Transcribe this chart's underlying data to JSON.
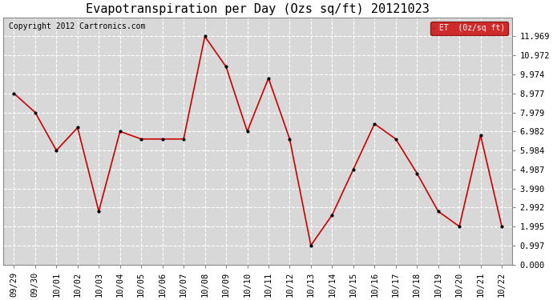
{
  "title": "Evapotranspiration per Day (Ozs sq/ft) 20121023",
  "copyright": "Copyright 2012 Cartronics.com",
  "legend_label": "ET  (0z/sq ft)",
  "x_labels": [
    "09/29",
    "09/30",
    "10/01",
    "10/02",
    "10/03",
    "10/04",
    "10/05",
    "10/06",
    "10/07",
    "10/08",
    "10/09",
    "10/10",
    "10/11",
    "10/12",
    "10/13",
    "10/14",
    "10/15",
    "10/16",
    "10/17",
    "10/18",
    "10/19",
    "10/20",
    "10/21",
    "10/22"
  ],
  "y_values": [
    8.977,
    7.979,
    5.984,
    7.182,
    2.79,
    6.982,
    6.583,
    6.583,
    6.583,
    11.969,
    10.374,
    6.982,
    9.774,
    6.583,
    0.997,
    2.592,
    4.987,
    7.38,
    6.582,
    4.787,
    2.79,
    1.995,
    6.783,
    1.995
  ],
  "line_color": "#cc0000",
  "marker_color": "#000000",
  "bg_color": "#ffffff",
  "plot_bg_color": "#d8d8d8",
  "grid_color": "#ffffff",
  "ylim": [
    0.0,
    12.966
  ],
  "yticks": [
    0.0,
    0.997,
    1.995,
    2.992,
    3.99,
    4.987,
    5.984,
    6.982,
    7.979,
    8.977,
    9.974,
    10.972,
    11.969
  ],
  "title_fontsize": 11,
  "tick_fontsize": 7.5,
  "copyright_fontsize": 7,
  "legend_bg": "#cc0000",
  "legend_text_color": "#ffffff"
}
